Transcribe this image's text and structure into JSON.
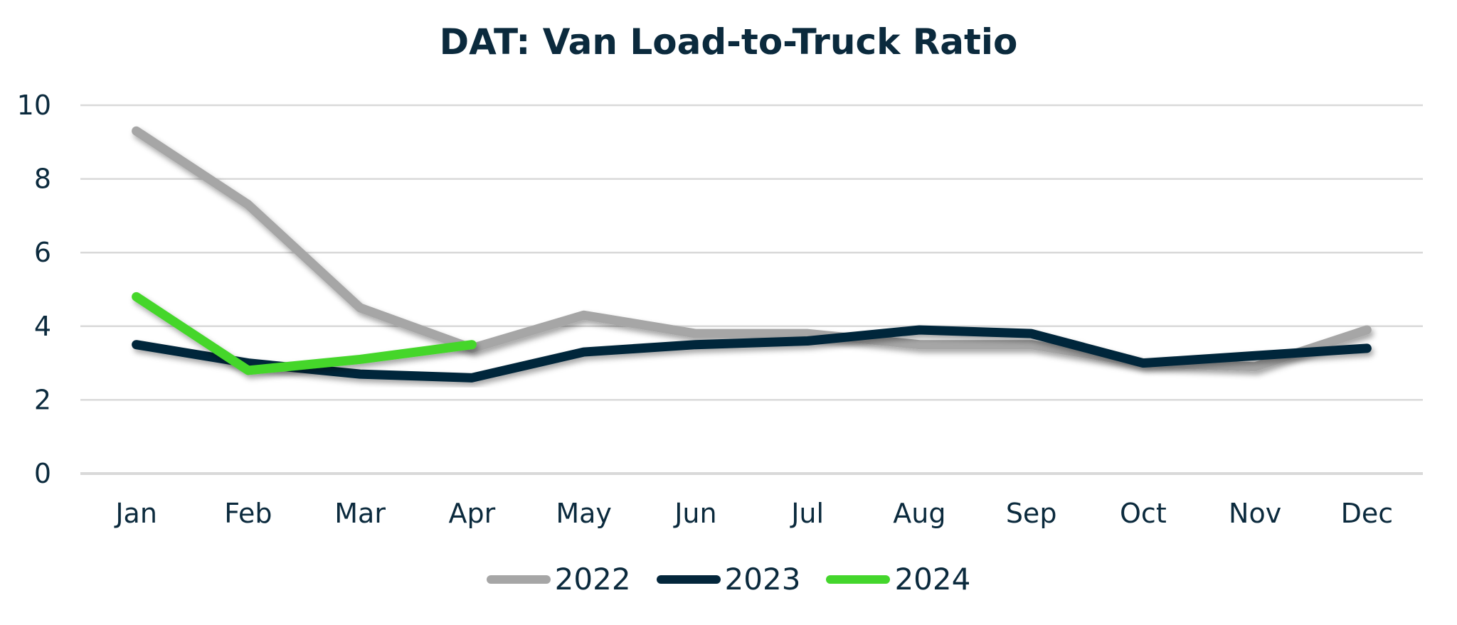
{
  "chart_data": {
    "type": "line",
    "title": "DAT: Van Load-to-Truck Ratio",
    "xlabel": "",
    "ylabel": "",
    "ylim": [
      0,
      10
    ],
    "yticks": [
      "0",
      "2",
      "4",
      "6",
      "8",
      "10"
    ],
    "grid": true,
    "legend_position": "bottom",
    "categories": [
      "Jan",
      "Feb",
      "Mar",
      "Apr",
      "May",
      "Jun",
      "Jul",
      "Aug",
      "Sep",
      "Oct",
      "Nov",
      "Dec"
    ],
    "series": [
      {
        "name": "2022",
        "color": "#a6a6a6",
        "values": [
          9.3,
          7.3,
          4.5,
          3.4,
          4.3,
          3.8,
          3.8,
          3.5,
          3.5,
          3.0,
          2.9,
          3.9
        ]
      },
      {
        "name": "2023",
        "color": "#03263b",
        "values": [
          3.5,
          3.0,
          2.7,
          2.6,
          3.3,
          3.5,
          3.6,
          3.9,
          3.8,
          3.0,
          3.2,
          3.4
        ]
      },
      {
        "name": "2024",
        "color": "#44d62c",
        "values": [
          4.8,
          2.8,
          3.1,
          3.5
        ]
      }
    ]
  }
}
